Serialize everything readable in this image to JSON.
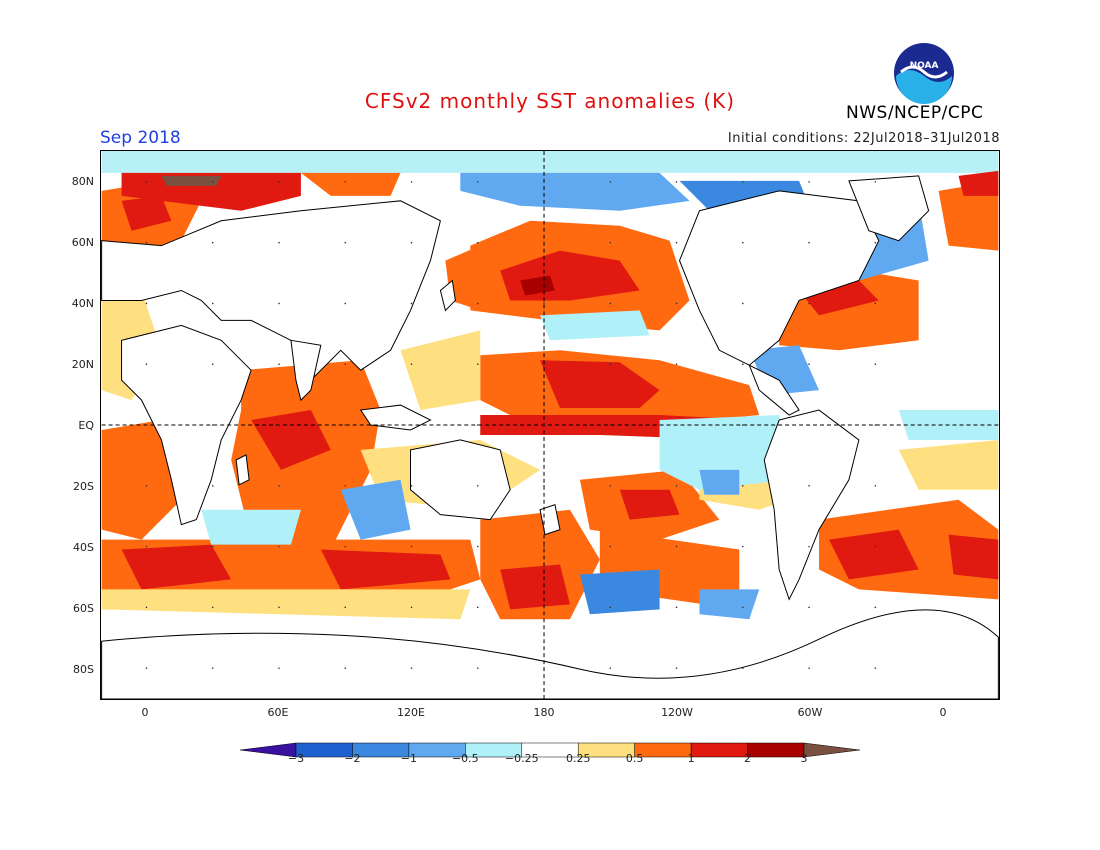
{
  "header": {
    "title": "CFSv2 monthly SST anomalies (K)",
    "month": "Sep 2018",
    "initial_conditions": "Initial conditions: 22Jul2018–31Jul2018",
    "agency": "NWS/NCEP/CPC",
    "logo_text": "NOAA"
  },
  "axes": {
    "lat_labels": [
      "80N",
      "60N",
      "40N",
      "20N",
      "EQ",
      "20S",
      "40S",
      "60S",
      "80S"
    ],
    "lon_labels": [
      "0",
      "60E",
      "120E",
      "180",
      "120W",
      "60W",
      "0"
    ]
  },
  "colorbar": {
    "ticks": [
      "−3",
      "−2",
      "−1",
      "−0.5",
      "−0.25",
      "0.25",
      "0.5",
      "1",
      "2",
      "3"
    ],
    "colors": [
      "#3a10a0",
      "#1f60d0",
      "#3a88e0",
      "#60a8f0",
      "#b0f0f8",
      "#ffffff",
      "#ffe080",
      "#ff6a10",
      "#e01a10",
      "#a80000",
      "#7a5040"
    ]
  },
  "colors": {
    "land": "#ffffff",
    "ice": "#b8f0f8",
    "warm_light": "#ffe080",
    "warm_mid": "#ff6a10",
    "warm_strong": "#e01a10",
    "warm_extreme": "#a80000",
    "cold_light": "#b0f0f8",
    "cold_mid": "#60a8f0",
    "cold_strong": "#3a88e0"
  }
}
